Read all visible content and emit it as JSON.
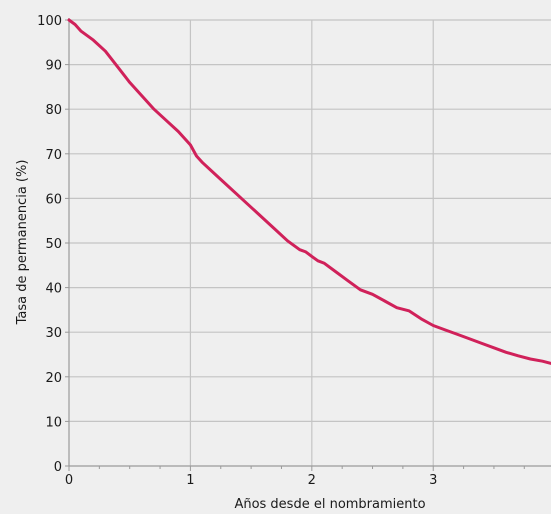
{
  "chart_data": {
    "type": "line",
    "title": "",
    "xlabel": "Años desde el nombramiento",
    "ylabel": "Tasa de permanencia  (%)",
    "xlim": [
      0,
      3.97
    ],
    "ylim": [
      0,
      100
    ],
    "x_ticks": [
      0,
      1,
      2,
      3
    ],
    "y_ticks": [
      0,
      10,
      20,
      30,
      40,
      50,
      60,
      70,
      80,
      90,
      100
    ],
    "grid": true,
    "legend": "none",
    "colors": {
      "line": "#d0215a",
      "grid": "#c4c4c4",
      "axis": "#9a9a9a",
      "background": "#efefef"
    },
    "series": [
      {
        "x": [
          0,
          0.05,
          0.1,
          0.2,
          0.3,
          0.4,
          0.5,
          0.6,
          0.7,
          0.8,
          0.9,
          1.0,
          1.05,
          1.1,
          1.2,
          1.3,
          1.4,
          1.5,
          1.6,
          1.7,
          1.8,
          1.9,
          1.95,
          2.0,
          2.05,
          2.1,
          2.2,
          2.3,
          2.4,
          2.5,
          2.6,
          2.7,
          2.8,
          2.9,
          3.0,
          3.1,
          3.2,
          3.3,
          3.4,
          3.5,
          3.6,
          3.7,
          3.8,
          3.9,
          3.97
        ],
        "y": [
          100,
          99,
          97.5,
          95.5,
          93,
          89.5,
          86,
          83,
          80,
          77.5,
          75,
          72,
          69.5,
          68,
          65.5,
          63,
          60.5,
          58,
          55.5,
          53,
          50.5,
          48.5,
          48,
          47,
          46,
          45.5,
          43.5,
          41.5,
          39.5,
          38.5,
          37,
          35.5,
          34.8,
          33,
          31.5,
          30.5,
          29.5,
          28.5,
          27.5,
          26.5,
          25.5,
          24.7,
          24,
          23.5,
          23
        ]
      }
    ]
  }
}
